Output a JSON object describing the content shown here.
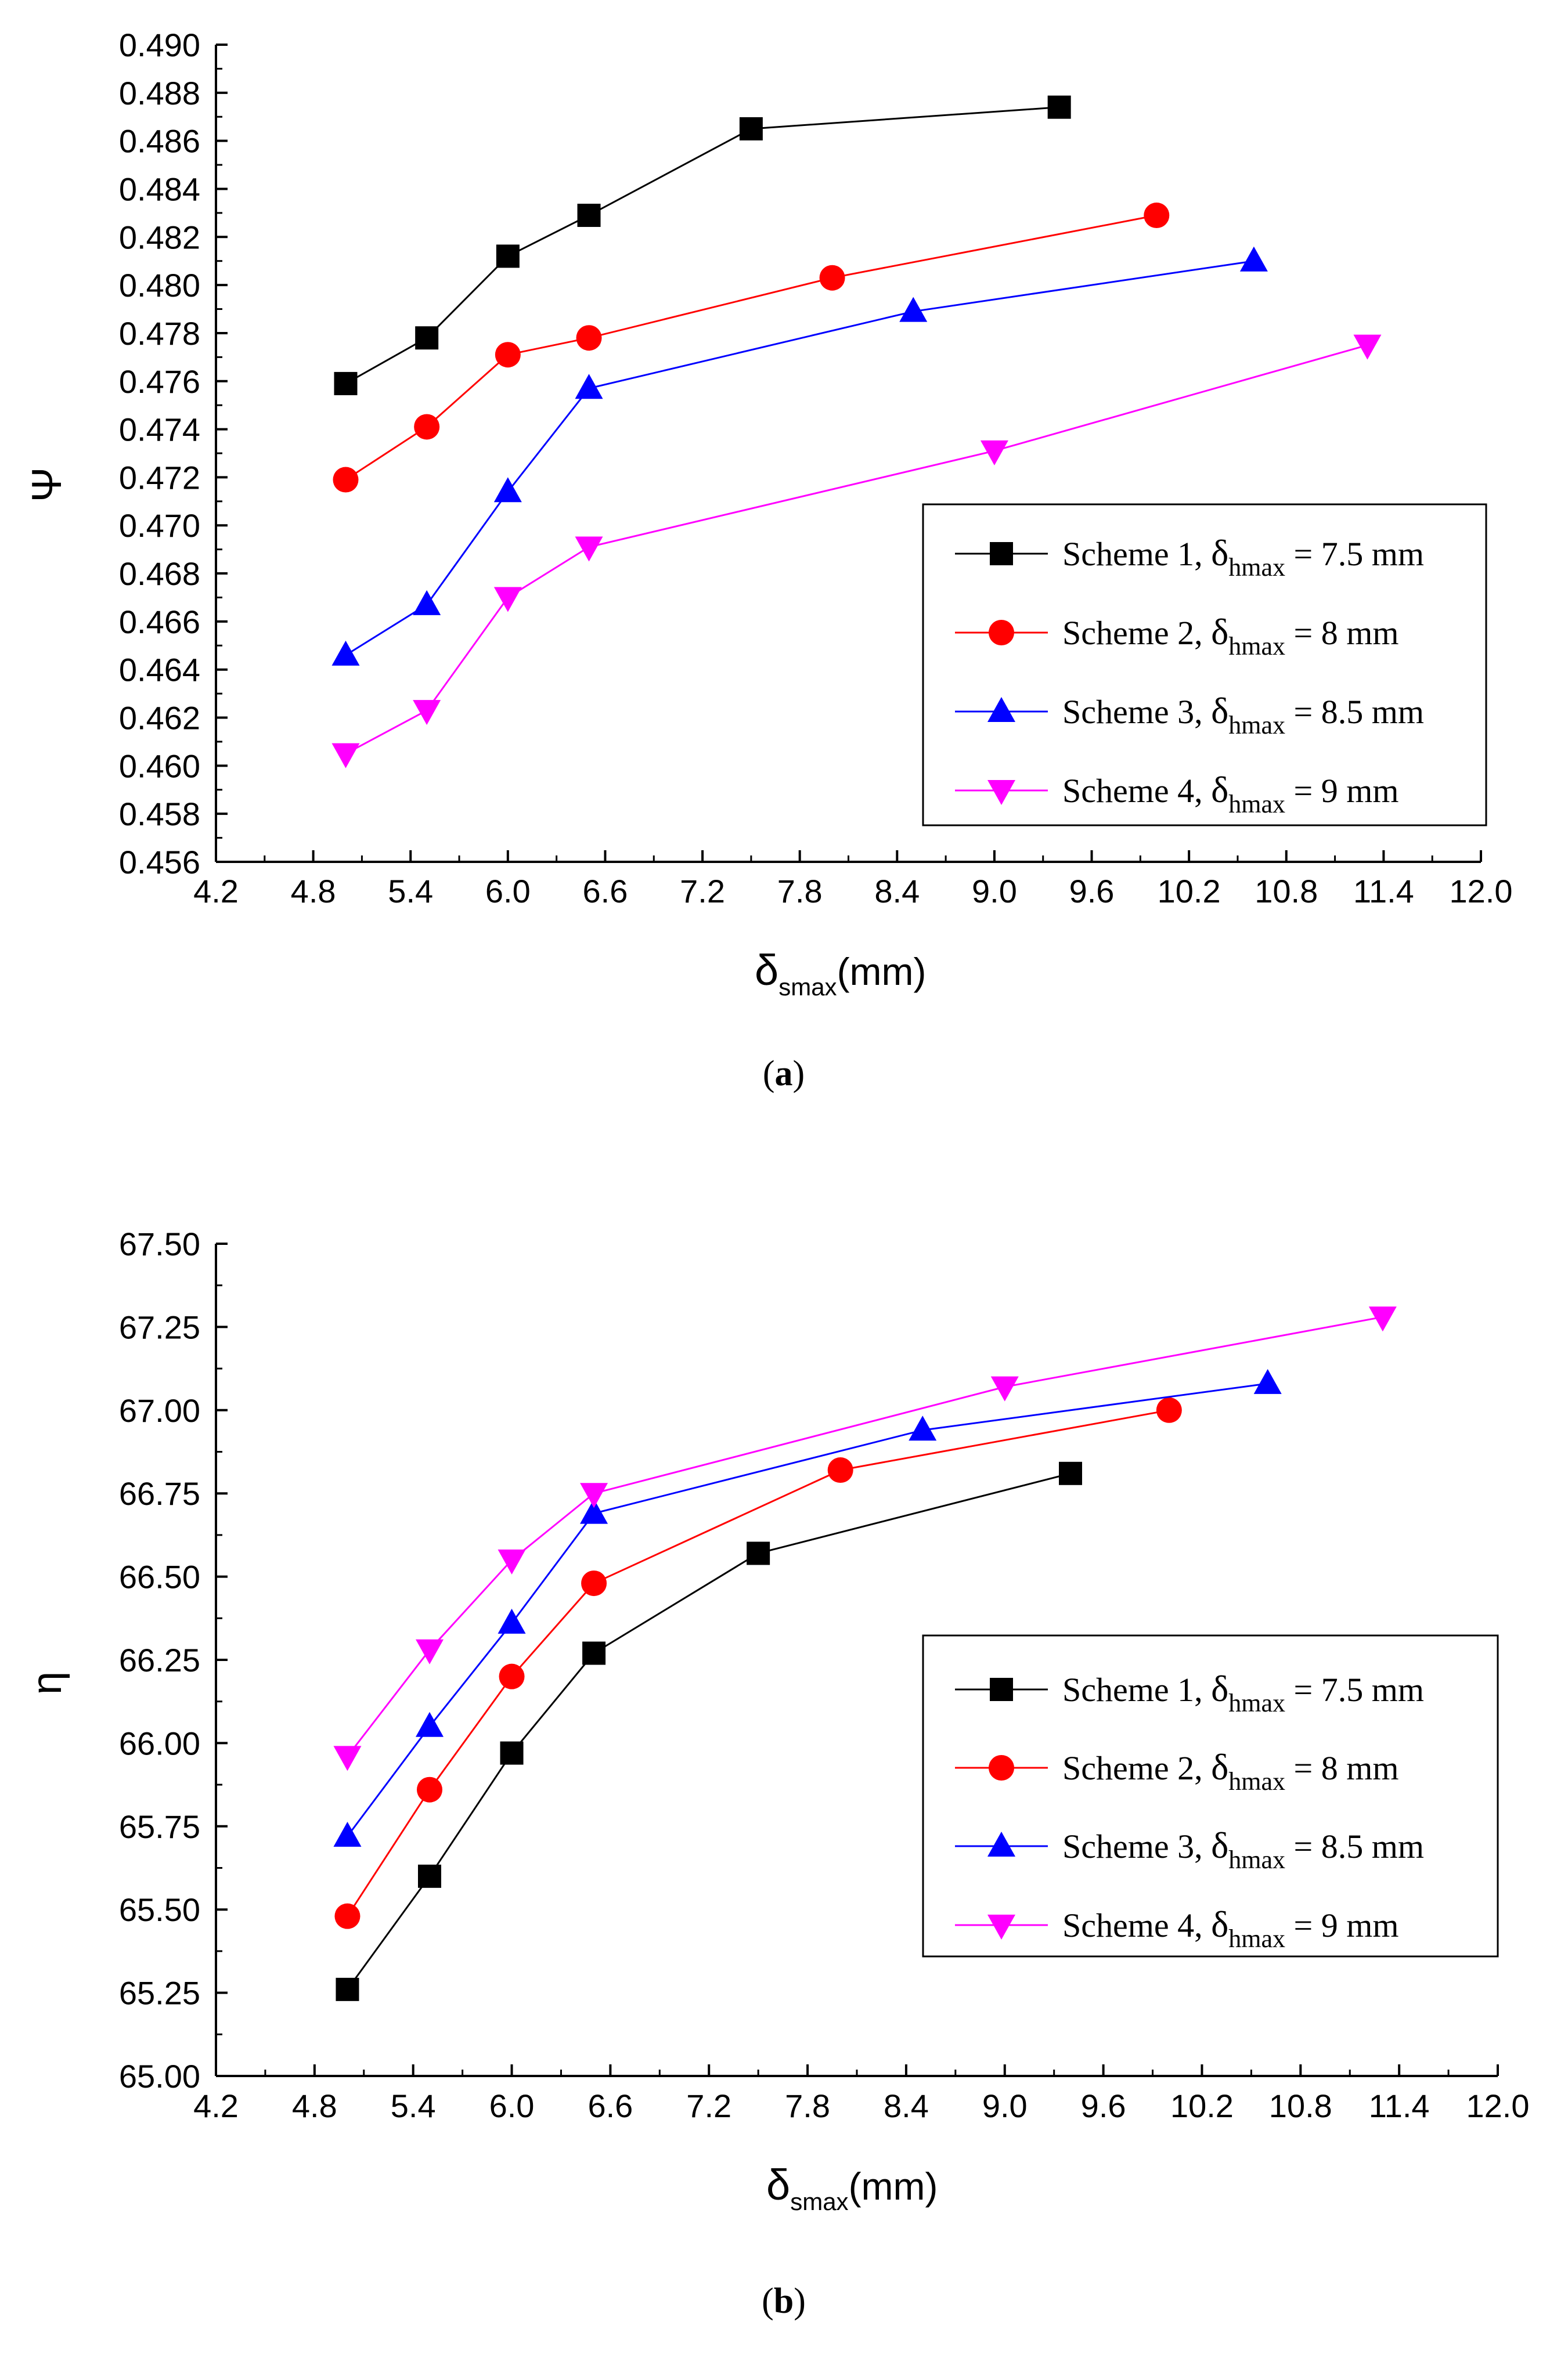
{
  "chart_data": [
    {
      "panel_id": "a",
      "type": "line",
      "panel_label_open": "(",
      "panel_label": "a",
      "panel_label_close": ")",
      "title": "",
      "xlabel_main": "δ",
      "xlabel_sub": "smax",
      "xlabel_unit": "(mm)",
      "ylabel": "Ψ",
      "xlim": [
        4.2,
        12.0
      ],
      "ylim": [
        0.456,
        0.49
      ],
      "xticks": [
        "4.2",
        "4.8",
        "5.4",
        "6.0",
        "6.6",
        "7.2",
        "7.8",
        "8.4",
        "9.0",
        "9.6",
        "10.2",
        "10.8",
        "11.4",
        "12.0"
      ],
      "yticks": [
        "0.456",
        "0.458",
        "0.460",
        "0.462",
        "0.464",
        "0.466",
        "0.468",
        "0.470",
        "0.472",
        "0.474",
        "0.476",
        "0.478",
        "0.480",
        "0.482",
        "0.484",
        "0.486",
        "0.488",
        "0.490"
      ],
      "legend_position": "lower-right",
      "series": [
        {
          "name": "Scheme 1, ",
          "legend_delta": "δ",
          "legend_sub": "hmax",
          "legend_value": " = 7.5 mm",
          "color": "#000000",
          "marker": "square",
          "x": [
            5.0,
            5.5,
            6.0,
            6.5,
            7.5,
            9.4
          ],
          "y": [
            0.4759,
            0.4778,
            0.4812,
            0.4829,
            0.4865,
            0.4874
          ]
        },
        {
          "name": "Scheme 2, ",
          "legend_delta": "δ",
          "legend_sub": "hmax",
          "legend_value": " = 8 mm",
          "color": "#ff0000",
          "marker": "circle",
          "x": [
            5.0,
            5.5,
            6.0,
            6.5,
            8.0,
            10.0
          ],
          "y": [
            0.4719,
            0.4741,
            0.4771,
            0.4778,
            0.4803,
            0.4829
          ]
        },
        {
          "name": "Scheme 3, ",
          "legend_delta": "δ",
          "legend_sub": "hmax",
          "legend_value": " = 8.5 mm",
          "color": "#0000ff",
          "marker": "triangle-up",
          "x": [
            5.0,
            5.5,
            6.0,
            6.5,
            8.5,
            10.6
          ],
          "y": [
            0.4646,
            0.4667,
            0.4714,
            0.4757,
            0.4789,
            0.481
          ]
        },
        {
          "name": "Scheme 4, ",
          "legend_delta": "δ",
          "legend_sub": "hmax",
          "legend_value": " = 9 mm",
          "color": "#ff00ff",
          "marker": "triangle-down",
          "x": [
            5.0,
            5.5,
            6.0,
            6.5,
            9.0,
            11.3
          ],
          "y": [
            0.4605,
            0.4623,
            0.467,
            0.4691,
            0.4731,
            0.4775
          ]
        }
      ]
    },
    {
      "panel_id": "b",
      "type": "line",
      "panel_label_open": "(",
      "panel_label": "b",
      "panel_label_close": ")",
      "title": "",
      "xlabel_main": "δ",
      "xlabel_sub": "smax",
      "xlabel_unit": "(mm)",
      "ylabel": "η",
      "xlim": [
        4.2,
        12.0
      ],
      "ylim": [
        65.0,
        67.5
      ],
      "xticks": [
        "4.2",
        "4.8",
        "5.4",
        "6.0",
        "6.6",
        "7.2",
        "7.8",
        "8.4",
        "9.0",
        "9.6",
        "10.2",
        "10.8",
        "11.4",
        "12.0"
      ],
      "yticks": [
        "65.00",
        "65.25",
        "65.50",
        "65.75",
        "66.00",
        "66.25",
        "66.50",
        "66.75",
        "67.00",
        "67.25",
        "67.50"
      ],
      "legend_position": "lower-right",
      "series": [
        {
          "name": "Scheme 1, ",
          "legend_delta": "δ",
          "legend_sub": "hmax",
          "legend_value": " = 7.5 mm",
          "color": "#000000",
          "marker": "square",
          "x": [
            5.0,
            5.5,
            6.0,
            6.5,
            7.5,
            9.4
          ],
          "y": [
            65.26,
            65.6,
            65.97,
            66.27,
            66.57,
            66.81
          ]
        },
        {
          "name": "Scheme 2, ",
          "legend_delta": "δ",
          "legend_sub": "hmax",
          "legend_value": " = 8 mm",
          "color": "#ff0000",
          "marker": "circle",
          "x": [
            5.0,
            5.5,
            6.0,
            6.5,
            8.0,
            10.0
          ],
          "y": [
            65.48,
            65.86,
            66.2,
            66.48,
            66.82,
            67.0
          ]
        },
        {
          "name": "Scheme 3, ",
          "legend_delta": "δ",
          "legend_sub": "hmax",
          "legend_value": " = 8.5 mm",
          "color": "#0000ff",
          "marker": "triangle-up",
          "x": [
            5.0,
            5.5,
            6.0,
            6.5,
            8.5,
            10.6
          ],
          "y": [
            65.72,
            66.05,
            66.36,
            66.69,
            66.94,
            67.08
          ]
        },
        {
          "name": "Scheme 4, ",
          "legend_delta": "δ",
          "legend_sub": "hmax",
          "legend_value": " = 9 mm",
          "color": "#ff00ff",
          "marker": "triangle-down",
          "x": [
            5.0,
            5.5,
            6.0,
            6.5,
            9.0,
            11.3
          ],
          "y": [
            65.96,
            66.28,
            66.55,
            66.75,
            67.07,
            67.28
          ]
        }
      ]
    }
  ]
}
